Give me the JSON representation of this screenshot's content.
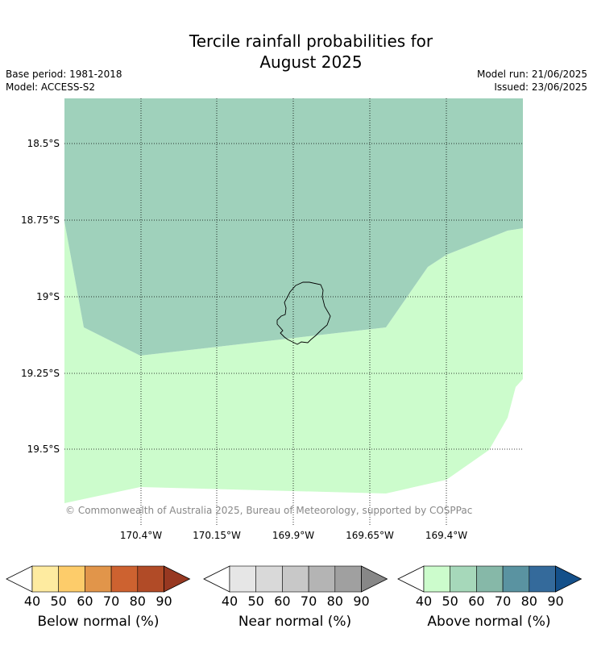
{
  "title_line1": "Tercile rainfall probabilities for",
  "title_line2": "August 2025",
  "meta": {
    "base_period": "Base period: 1981-2018",
    "model": "Model: ACCESS-S2",
    "model_run": "Model run: 21/06/2025",
    "issued": "Issued: 23/06/2025"
  },
  "map": {
    "lat_labels": [
      "18.5°S",
      "18.75°S",
      "19°S",
      "19.25°S",
      "19.5°S"
    ],
    "lon_labels": [
      "170.4°W",
      "170.15°W",
      "169.9°W",
      "169.65°W",
      "169.4°W"
    ],
    "copyright": "© Commonwealth of Australia 2025, Bureau of Meteorology, supported by COSPPac",
    "colors": {
      "above_60": "#9fd1bb",
      "above_50": "#ccfccc",
      "island_outline": "#000000"
    }
  },
  "colorbars": [
    {
      "label": "Below normal (%)",
      "ticks": [
        "40",
        "50",
        "60",
        "70",
        "80",
        "90"
      ],
      "colors": [
        "#ffffff",
        "#feeba0",
        "#fdcc6a",
        "#e1954a",
        "#cd6230",
        "#b14b27",
        "#973821"
      ]
    },
    {
      "label": "Near normal (%)",
      "ticks": [
        "40",
        "50",
        "60",
        "70",
        "80",
        "90"
      ],
      "colors": [
        "#ffffff",
        "#e6e6e6",
        "#d9d9d9",
        "#c8c8c8",
        "#b4b4b4",
        "#a0a0a0",
        "#878787"
      ]
    },
    {
      "label": "Above normal (%)",
      "ticks": [
        "40",
        "50",
        "60",
        "70",
        "80",
        "90"
      ],
      "colors": [
        "#ffffff",
        "#ccfccc",
        "#a6d8ba",
        "#86b8a8",
        "#5a93a1",
        "#346a9b",
        "#14508a"
      ]
    }
  ]
}
